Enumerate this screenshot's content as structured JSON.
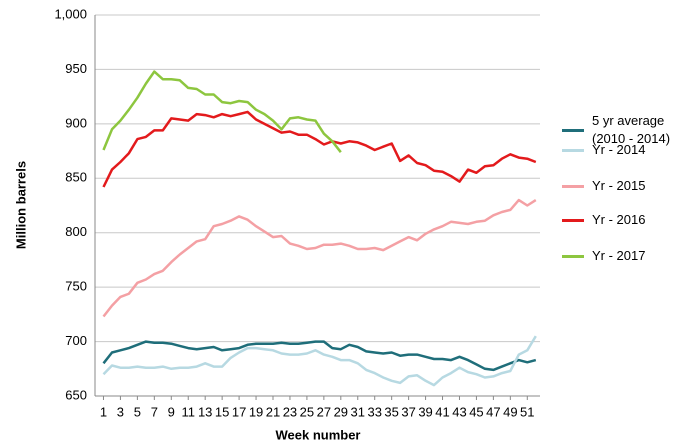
{
  "chart_data": {
    "type": "line",
    "y_label": "Million barrels",
    "x_label": "Week number",
    "x": [
      1,
      2,
      3,
      4,
      5,
      6,
      7,
      8,
      9,
      10,
      11,
      12,
      13,
      14,
      15,
      16,
      17,
      18,
      19,
      20,
      21,
      22,
      23,
      24,
      25,
      26,
      27,
      28,
      29,
      30,
      31,
      32,
      33,
      34,
      35,
      36,
      37,
      38,
      39,
      40,
      41,
      42,
      43,
      44,
      45,
      46,
      47,
      48,
      49,
      50,
      51,
      52
    ],
    "xlim": [
      0,
      52.5
    ],
    "xticks": [
      1,
      3,
      5,
      7,
      9,
      11,
      13,
      15,
      17,
      19,
      21,
      23,
      25,
      27,
      29,
      31,
      33,
      35,
      37,
      39,
      41,
      43,
      45,
      47,
      49,
      51
    ],
    "ylim": [
      650,
      1000
    ],
    "yticks": [
      650,
      700,
      750,
      800,
      850,
      900,
      950,
      {
        "value": 1000,
        "label": "1,000"
      }
    ],
    "grid": true,
    "series": [
      {
        "name": "5 yr average (2010 - 2014)",
        "color": "#1f6e7a",
        "values": [
          680,
          690,
          692,
          694,
          697,
          700,
          699,
          699,
          698,
          696,
          694,
          693,
          694,
          695,
          692,
          693,
          694,
          697,
          698,
          698,
          698,
          699,
          698,
          698,
          699,
          700,
          700,
          694,
          693,
          697,
          695,
          691,
          690,
          689,
          690,
          687,
          688,
          688,
          686,
          684,
          684,
          683,
          686,
          683,
          679,
          675,
          674,
          677,
          680,
          683,
          681,
          683
        ]
      },
      {
        "name": "Yr - 2014",
        "color": "#b7d9e2",
        "values": [
          670,
          678,
          676,
          676,
          677,
          676,
          676,
          677,
          675,
          676,
          676,
          677,
          680,
          677,
          677,
          685,
          690,
          694,
          694,
          693,
          692,
          689,
          688,
          688,
          689,
          692,
          688,
          686,
          683,
          683,
          680,
          674,
          671,
          667,
          664,
          662,
          668,
          669,
          664,
          660,
          667,
          671,
          676,
          672,
          670,
          667,
          668,
          671,
          673,
          688,
          692,
          705
        ]
      },
      {
        "name": "Yr - 2015",
        "color": "#f4a0a4",
        "values": [
          723,
          733,
          741,
          744,
          754,
          757,
          762,
          765,
          773,
          780,
          786,
          792,
          794,
          806,
          808,
          811,
          815,
          812,
          806,
          801,
          796,
          797,
          790,
          788,
          785,
          786,
          789,
          789,
          790,
          788,
          785,
          785,
          786,
          784,
          788,
          792,
          796,
          793,
          799,
          803,
          806,
          810,
          809,
          808,
          810,
          811,
          816,
          819,
          821,
          830,
          825,
          830
        ]
      },
      {
        "name": "Yr - 2016",
        "color": "#e31a1c",
        "values": [
          842,
          858,
          865,
          873,
          886,
          888,
          894,
          894,
          905,
          904,
          903,
          909,
          908,
          906,
          909,
          907,
          909,
          911,
          904,
          900,
          896,
          892,
          893,
          890,
          890,
          886,
          881,
          884,
          882,
          884,
          883,
          880,
          876,
          879,
          882,
          866,
          871,
          864,
          862,
          857,
          856,
          852,
          847,
          858,
          855,
          861,
          862,
          868,
          872,
          869,
          868,
          865
        ]
      },
      {
        "name": "Yr - 2017",
        "color": "#8dc63f",
        "values": [
          876,
          895,
          903,
          913,
          924,
          937,
          948,
          941,
          941,
          940,
          933,
          932,
          927,
          927,
          920,
          919,
          921,
          920,
          913,
          909,
          903,
          895,
          905,
          906,
          904,
          903,
          891,
          884,
          874,
          null,
          null,
          null,
          null,
          null,
          null,
          null,
          null,
          null,
          null,
          null,
          null,
          null,
          null,
          null,
          null,
          null,
          null,
          null,
          null,
          null,
          null,
          null
        ]
      }
    ]
  }
}
